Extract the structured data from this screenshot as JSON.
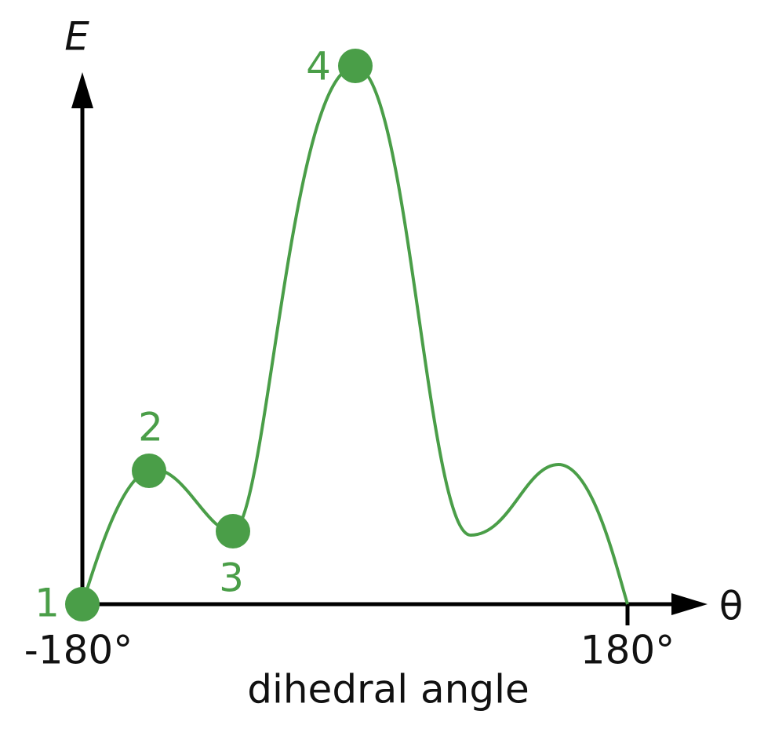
{
  "axes": {
    "y_label": "E",
    "x_label": "θ",
    "x_title": "dihedral angle",
    "ticks": [
      "-180°",
      "180°"
    ]
  },
  "points": [
    {
      "label": "1"
    },
    {
      "label": "2"
    },
    {
      "label": "3"
    },
    {
      "label": "4"
    }
  ]
}
